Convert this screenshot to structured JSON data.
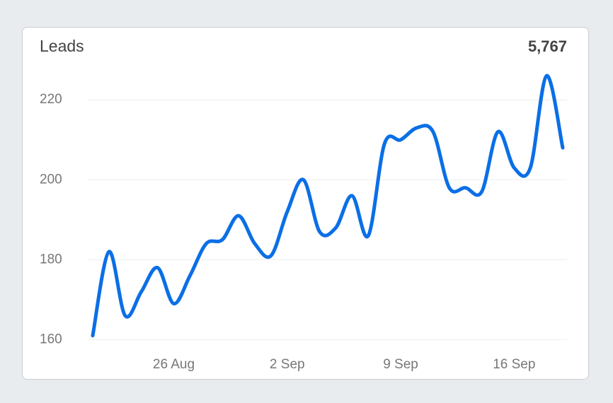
{
  "chart_data": {
    "type": "line",
    "title": "Leads",
    "total": "5,767",
    "categories": [
      null,
      null,
      null,
      null,
      null,
      "26 Aug",
      null,
      null,
      null,
      null,
      null,
      null,
      "2 Sep",
      null,
      null,
      null,
      null,
      null,
      null,
      "9 Sep",
      null,
      null,
      null,
      null,
      null,
      null,
      "16 Sep",
      null,
      null,
      null
    ],
    "values": [
      161,
      182,
      166,
      172,
      178,
      169,
      176,
      184,
      185,
      191,
      184,
      181,
      192,
      200,
      187,
      188,
      196,
      186,
      209,
      210,
      213,
      212,
      198,
      198,
      197,
      212,
      203,
      203,
      226,
      208
    ],
    "color": "#0b6fe6",
    "ylim": [
      159,
      228
    ],
    "yticks": [
      160,
      180,
      200,
      220
    ],
    "grid": true
  }
}
